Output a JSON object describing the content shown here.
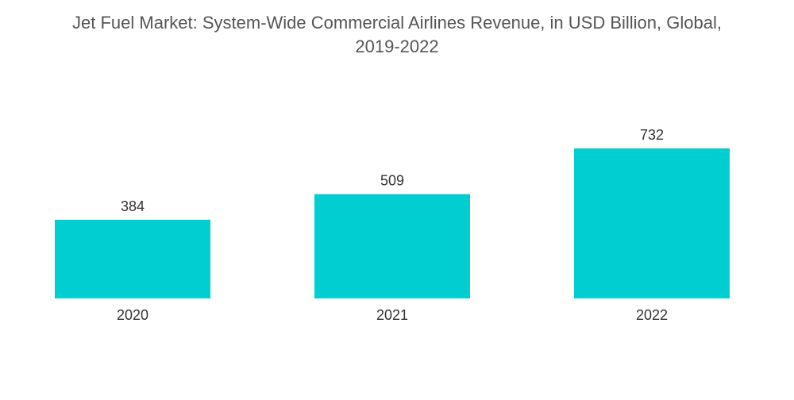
{
  "chart_data": {
    "type": "bar",
    "title": "Jet Fuel Market: System-Wide Commercial Airlines Revenue, in USD Billion, Global,",
    "subtitle": "2019-2022",
    "categories": [
      "2020",
      "2021",
      "2022"
    ],
    "values": [
      384,
      509,
      732
    ],
    "value_labels": [
      "384",
      "509",
      "732"
    ],
    "bar_color": "#00CED1",
    "xlabel": "",
    "ylabel": "",
    "ylim": [
      0,
      732
    ],
    "grid": false,
    "legend": "none"
  }
}
